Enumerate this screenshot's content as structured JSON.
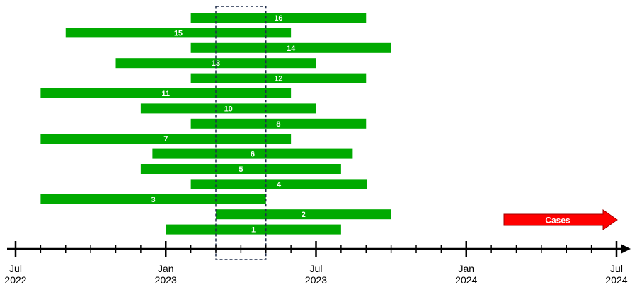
{
  "chart_data": {
    "type": "bar",
    "orientation": "horizontal-gantt",
    "x_axis": {
      "range": [
        "2022-07",
        "2024-07"
      ],
      "tick_interval_months": 1,
      "major_ticks": [
        {
          "date": "2022-07",
          "line1": "Jul",
          "line2": "2022"
        },
        {
          "date": "2023-01",
          "line1": "Jan",
          "line2": "2023"
        },
        {
          "date": "2023-07",
          "line1": "Jul",
          "line2": "2023"
        },
        {
          "date": "2024-01",
          "line1": "Jan",
          "line2": "2024"
        },
        {
          "date": "2024-07",
          "line1": "Jul",
          "line2": "2024"
        }
      ]
    },
    "bars": [
      {
        "label": "16",
        "start": "2023-02",
        "end": "2023-09"
      },
      {
        "label": "15",
        "start": "2022-09",
        "end": "2023-06"
      },
      {
        "label": "14",
        "start": "2023-02",
        "end": "2023-10"
      },
      {
        "label": "13",
        "start": "2022-11",
        "end": "2023-07"
      },
      {
        "label": "12",
        "start": "2023-02",
        "end": "2023-09"
      },
      {
        "label": "11",
        "start": "2022-08",
        "end": "2023-06"
      },
      {
        "label": "10",
        "start": "2022-12",
        "end": "2023-07"
      },
      {
        "label": "8",
        "start": "2023-02",
        "end": "2023-09"
      },
      {
        "label": "7",
        "start": "2022-08",
        "end": "2023-06"
      },
      {
        "label": "6",
        "start": "2022-12-15",
        "end": "2023-08-15"
      },
      {
        "label": "5",
        "start": "2022-12",
        "end": "2023-08"
      },
      {
        "label": "4",
        "start": "2023-02",
        "end": "2023-09-02"
      },
      {
        "label": "3",
        "start": "2022-08",
        "end": "2023-05"
      },
      {
        "label": "2",
        "start": "2023-03",
        "end": "2023-10"
      },
      {
        "label": "1",
        "start": "2023-01",
        "end": "2023-08"
      }
    ],
    "highlight_window": {
      "start": "2023-03",
      "end": "2023-05"
    },
    "arrow": {
      "label": "Cases",
      "color": "#ff0000"
    },
    "bar_color": "#00aa00"
  }
}
